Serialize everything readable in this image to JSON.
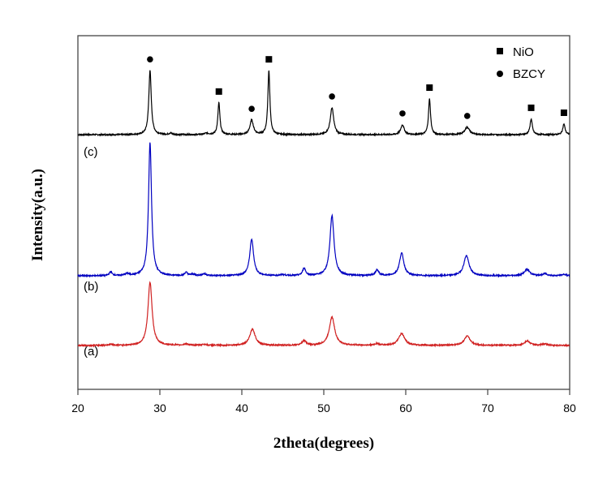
{
  "chart_data": {
    "type": "line",
    "xlabel": "2theta(degrees)",
    "ylabel": "Intensity(a.u.)",
    "xlim": [
      20,
      80
    ],
    "ylim": [
      0,
      100
    ],
    "xticks": [
      20,
      30,
      40,
      50,
      60,
      70,
      80
    ],
    "grid": false,
    "legend": {
      "placement": "top-right",
      "entries": [
        {
          "label": "NiO",
          "marker": "square"
        },
        {
          "label": "BZCY",
          "marker": "circle"
        }
      ]
    },
    "series": [
      {
        "name": "(c)",
        "color": "#000000",
        "baseline": 72.0,
        "peaks": [
          [
            28.8,
            18.1,
            0.18
          ],
          [
            31.3,
            0.4,
            0.2
          ],
          [
            35.7,
            0.4,
            0.3
          ],
          [
            37.2,
            9.0,
            0.15
          ],
          [
            41.2,
            4.1,
            0.25
          ],
          [
            43.3,
            18.1,
            0.15
          ],
          [
            51.0,
            7.6,
            0.25
          ],
          [
            59.6,
            2.8,
            0.25
          ],
          [
            62.9,
            10.1,
            0.15
          ],
          [
            67.5,
            2.1,
            0.35
          ],
          [
            75.3,
            4.4,
            0.17
          ],
          [
            79.3,
            3.0,
            0.17
          ]
        ],
        "markers": [
          [
            28.8,
            "circle"
          ],
          [
            37.2,
            "square"
          ],
          [
            41.2,
            "circle"
          ],
          [
            43.3,
            "square"
          ],
          [
            51.0,
            "circle"
          ],
          [
            59.6,
            "circle"
          ],
          [
            62.9,
            "square"
          ],
          [
            67.5,
            "circle"
          ],
          [
            75.3,
            "square"
          ],
          [
            79.3,
            "square"
          ]
        ]
      },
      {
        "name": "(b)",
        "color": "#0000c0",
        "baseline": 32.1,
        "peaks": [
          [
            24.0,
            1.1,
            0.2
          ],
          [
            26.0,
            0.5,
            0.3
          ],
          [
            28.8,
            37.6,
            0.22
          ],
          [
            33.2,
            0.9,
            0.2
          ],
          [
            34.0,
            0.4,
            0.3
          ],
          [
            35.4,
            0.5,
            0.3
          ],
          [
            41.2,
            10.3,
            0.28
          ],
          [
            45.0,
            0.3,
            0.3
          ],
          [
            47.6,
            2.1,
            0.22
          ],
          [
            51.0,
            17.0,
            0.3
          ],
          [
            56.5,
            1.6,
            0.25
          ],
          [
            59.5,
            6.4,
            0.32
          ],
          [
            67.4,
            5.7,
            0.38
          ],
          [
            74.8,
            1.8,
            0.4
          ],
          [
            77.0,
            0.6,
            0.3
          ],
          [
            79.3,
            0.4,
            0.3
          ]
        ]
      },
      {
        "name": "(a)",
        "color": "#d02020",
        "baseline": 12.4,
        "peaks": [
          [
            24.0,
            0.3,
            0.3
          ],
          [
            28.8,
            17.9,
            0.3
          ],
          [
            33.2,
            0.4,
            0.3
          ],
          [
            35.4,
            0.3,
            0.3
          ],
          [
            41.3,
            4.6,
            0.4
          ],
          [
            47.6,
            1.3,
            0.3
          ],
          [
            51.0,
            8.0,
            0.4
          ],
          [
            56.5,
            0.5,
            0.3
          ],
          [
            59.5,
            3.3,
            0.45
          ],
          [
            67.5,
            2.6,
            0.45
          ],
          [
            74.8,
            1.2,
            0.45
          ],
          [
            77.0,
            0.4,
            0.4
          ]
        ]
      }
    ]
  }
}
